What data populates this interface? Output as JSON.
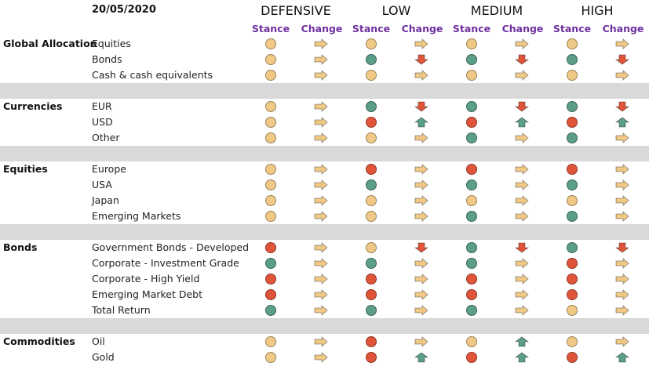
{
  "header": {
    "date": "20/05/2020",
    "groups": [
      "DEFENSIVE",
      "LOW",
      "MEDIUM",
      "HIGH"
    ],
    "stance_label": "Stance",
    "change_label": "Change"
  },
  "colors": {
    "yellow": "#f0c987",
    "green": "#5b9e8a",
    "red": "#e0553a",
    "purple": "#7030a0"
  },
  "sections": [
    {
      "category": "Global Allocation",
      "rows": [
        {
          "label": "Equities",
          "cells": [
            [
              "yellow",
              "right"
            ],
            [
              "yellow",
              "right"
            ],
            [
              "yellow",
              "right"
            ],
            [
              "yellow",
              "right"
            ]
          ]
        },
        {
          "label": "Bonds",
          "cells": [
            [
              "yellow",
              "right"
            ],
            [
              "green",
              "down"
            ],
            [
              "green",
              "down"
            ],
            [
              "green",
              "down"
            ]
          ]
        },
        {
          "label": "Cash & cash equivalents",
          "cells": [
            [
              "yellow",
              "right"
            ],
            [
              "yellow",
              "right"
            ],
            [
              "yellow",
              "right"
            ],
            [
              "yellow",
              "right"
            ]
          ]
        }
      ]
    },
    {
      "category": "Currencies",
      "rows": [
        {
          "label": "EUR",
          "cells": [
            [
              "yellow",
              "right"
            ],
            [
              "green",
              "down"
            ],
            [
              "green",
              "down"
            ],
            [
              "green",
              "down"
            ]
          ]
        },
        {
          "label": "USD",
          "cells": [
            [
              "yellow",
              "right"
            ],
            [
              "red",
              "up"
            ],
            [
              "red",
              "up"
            ],
            [
              "red",
              "up"
            ]
          ]
        },
        {
          "label": "Other",
          "cells": [
            [
              "yellow",
              "right"
            ],
            [
              "yellow",
              "right"
            ],
            [
              "green",
              "right"
            ],
            [
              "green",
              "right"
            ]
          ]
        }
      ]
    },
    {
      "category": "Equities",
      "rows": [
        {
          "label": "Europe",
          "cells": [
            [
              "yellow",
              "right"
            ],
            [
              "red",
              "right"
            ],
            [
              "red",
              "right"
            ],
            [
              "red",
              "right"
            ]
          ]
        },
        {
          "label": "USA",
          "cells": [
            [
              "yellow",
              "right"
            ],
            [
              "green",
              "right"
            ],
            [
              "green",
              "right"
            ],
            [
              "green",
              "right"
            ]
          ]
        },
        {
          "label": "Japan",
          "cells": [
            [
              "yellow",
              "right"
            ],
            [
              "yellow",
              "right"
            ],
            [
              "yellow",
              "right"
            ],
            [
              "yellow",
              "right"
            ]
          ]
        },
        {
          "label": "Emerging Markets",
          "cells": [
            [
              "yellow",
              "right"
            ],
            [
              "yellow",
              "right"
            ],
            [
              "green",
              "right"
            ],
            [
              "green",
              "right"
            ]
          ]
        }
      ]
    },
    {
      "category": "Bonds",
      "rows": [
        {
          "label": "Government Bonds - Developed",
          "cells": [
            [
              "red",
              "right"
            ],
            [
              "yellow",
              "down"
            ],
            [
              "green",
              "down"
            ],
            [
              "green",
              "down"
            ]
          ]
        },
        {
          "label": "Corporate - Investment Grade",
          "cells": [
            [
              "green",
              "right"
            ],
            [
              "green",
              "right"
            ],
            [
              "green",
              "right"
            ],
            [
              "red",
              "right"
            ]
          ]
        },
        {
          "label": "Corporate - High Yield",
          "cells": [
            [
              "red",
              "right"
            ],
            [
              "red",
              "right"
            ],
            [
              "red",
              "right"
            ],
            [
              "red",
              "right"
            ]
          ]
        },
        {
          "label": "Emerging Market Debt",
          "cells": [
            [
              "red",
              "right"
            ],
            [
              "red",
              "right"
            ],
            [
              "red",
              "right"
            ],
            [
              "red",
              "right"
            ]
          ]
        },
        {
          "label": "Total Return",
          "cells": [
            [
              "green",
              "right"
            ],
            [
              "green",
              "right"
            ],
            [
              "green",
              "right"
            ],
            [
              "yellow",
              "right"
            ]
          ]
        }
      ]
    },
    {
      "category": "Commodities",
      "rows": [
        {
          "label": "Oil",
          "cells": [
            [
              "yellow",
              "right"
            ],
            [
              "red",
              "right"
            ],
            [
              "yellow",
              "up"
            ],
            [
              "yellow",
              "right"
            ]
          ]
        },
        {
          "label": "Gold",
          "cells": [
            [
              "yellow",
              "right"
            ],
            [
              "red",
              "up"
            ],
            [
              "red",
              "up"
            ],
            [
              "red",
              "up"
            ]
          ]
        }
      ]
    }
  ]
}
